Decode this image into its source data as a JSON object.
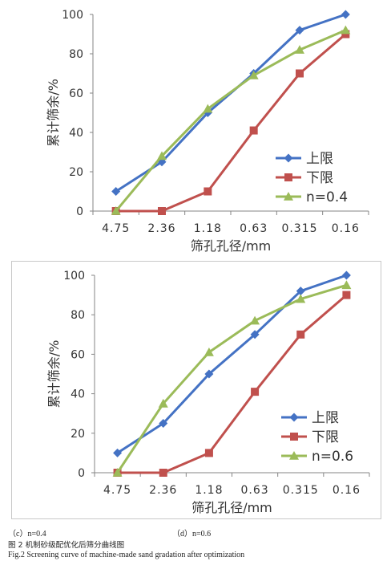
{
  "chart_data": [
    {
      "type": "line",
      "categories": [
        "4.75",
        "2.36",
        "1.18",
        "0.63",
        "0.315",
        "0.16"
      ],
      "series": [
        {
          "name": "上限",
          "values": [
            10,
            25,
            50,
            70,
            92,
            100
          ],
          "color": "#4472c4",
          "marker": "diamond"
        },
        {
          "name": "下限",
          "values": [
            0,
            0,
            10,
            41,
            70,
            90
          ],
          "color": "#c0504d",
          "marker": "square"
        },
        {
          "name": "n=0.4",
          "values": [
            0,
            28,
            52,
            69,
            82,
            92
          ],
          "color": "#9bbb59",
          "marker": "triangle"
        }
      ],
      "xlabel": "筛孔孔径/mm",
      "ylabel": "累计筛余/%",
      "ylim": [
        0,
        100
      ],
      "yticks": [
        0,
        20,
        40,
        60,
        80,
        100
      ],
      "grid": false,
      "legend_position": "right"
    },
    {
      "type": "line",
      "categories": [
        "4.75",
        "2.36",
        "1.18",
        "0.63",
        "0.315",
        "0.16"
      ],
      "series": [
        {
          "name": "上限",
          "values": [
            10,
            25,
            50,
            70,
            92,
            100
          ],
          "color": "#4472c4",
          "marker": "diamond"
        },
        {
          "name": "下限",
          "values": [
            0,
            0,
            10,
            41,
            70,
            90
          ],
          "color": "#c0504d",
          "marker": "square"
        },
        {
          "name": "n=0.6",
          "values": [
            0,
            35,
            61,
            77,
            88,
            95
          ],
          "color": "#9bbb59",
          "marker": "triangle"
        }
      ],
      "xlabel": "筛孔孔径/mm",
      "ylabel": "累计筛余/%",
      "ylim": [
        0,
        100
      ],
      "yticks": [
        0,
        20,
        40,
        60,
        80,
        100
      ],
      "grid": false,
      "legend_position": "right"
    }
  ],
  "captions": {
    "sub_c": "（c）n=0.4",
    "sub_d": "（d）n=0.6",
    "figure_cn": "图 2  机制砂级配优化后筛分曲线图",
    "figure_en": "Fig.2 Screening curve of machine-made sand gradation after optimization"
  }
}
